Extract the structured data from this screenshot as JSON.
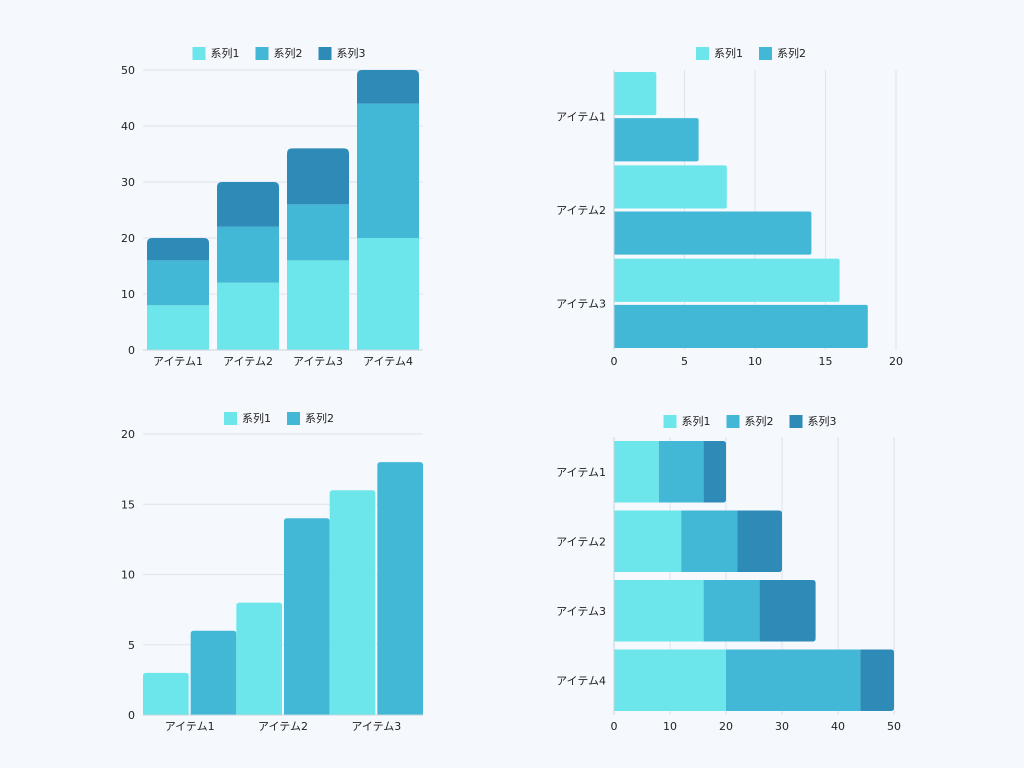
{
  "colors": {
    "series1": "#6ce6ea",
    "series2": "#43b8d6",
    "series3": "#2e8bb8",
    "grid": "#dde4ea",
    "axis": "#c9d2da"
  },
  "chart_data": [
    {
      "type": "bar",
      "orientation": "vertical",
      "stacked": true,
      "categories": [
        "アイテム1",
        "アイテム2",
        "アイテム3",
        "アイテム4"
      ],
      "series": [
        {
          "name": "系列1",
          "values": [
            8,
            12,
            16,
            20
          ]
        },
        {
          "name": "系列2",
          "values": [
            8,
            10,
            10,
            24
          ]
        },
        {
          "name": "系列3",
          "values": [
            4,
            8,
            10,
            6
          ]
        }
      ],
      "ylim": [
        0,
        50
      ],
      "yticks": [
        "0",
        "10",
        "20",
        "30",
        "40",
        "50"
      ],
      "grid": true,
      "legend": "top"
    },
    {
      "type": "bar",
      "orientation": "horizontal",
      "stacked": false,
      "categories": [
        "アイテム1",
        "アイテム2",
        "アイテム3"
      ],
      "series": [
        {
          "name": "系列1",
          "values": [
            3,
            8,
            16
          ]
        },
        {
          "name": "系列2",
          "values": [
            6,
            14,
            18
          ]
        }
      ],
      "xlim": [
        0,
        20
      ],
      "xticks": [
        "0",
        "5",
        "10",
        "15",
        "20"
      ],
      "grid": true,
      "legend": "top"
    },
    {
      "type": "bar",
      "orientation": "vertical",
      "stacked": false,
      "categories": [
        "アイテム1",
        "アイテム2",
        "アイテム3"
      ],
      "series": [
        {
          "name": "系列1",
          "values": [
            3,
            8,
            16
          ]
        },
        {
          "name": "系列2",
          "values": [
            6,
            14,
            18
          ]
        }
      ],
      "ylim": [
        0,
        20
      ],
      "yticks": [
        "0",
        "5",
        "10",
        "15",
        "20"
      ],
      "grid": true,
      "legend": "top"
    },
    {
      "type": "bar",
      "orientation": "horizontal",
      "stacked": true,
      "categories": [
        "アイテム1",
        "アイテム2",
        "アイテム3",
        "アイテム4"
      ],
      "series": [
        {
          "name": "系列1",
          "values": [
            8,
            12,
            16,
            20
          ]
        },
        {
          "name": "系列2",
          "values": [
            8,
            10,
            10,
            24
          ]
        },
        {
          "name": "系列3",
          "values": [
            4,
            8,
            10,
            6
          ]
        }
      ],
      "xlim": [
        0,
        50
      ],
      "xticks": [
        "0",
        "10",
        "20",
        "30",
        "40",
        "50"
      ],
      "grid": true,
      "legend": "top"
    }
  ]
}
